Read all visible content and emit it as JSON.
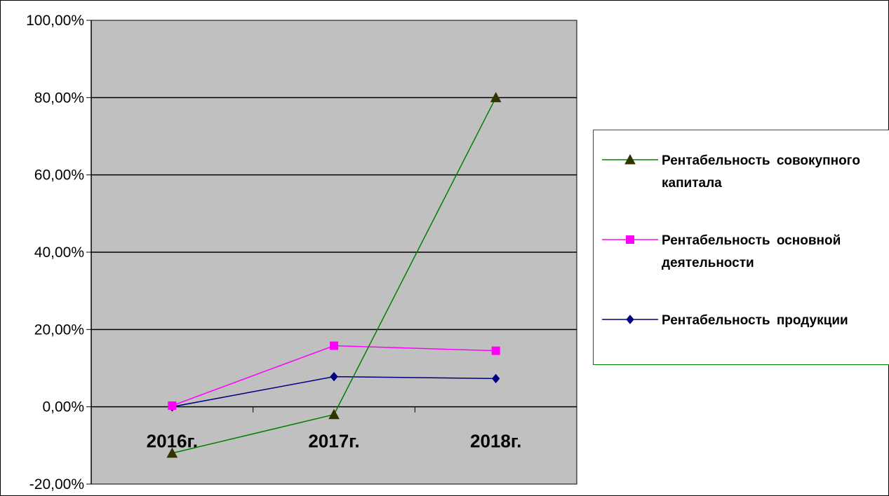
{
  "chart_data": {
    "type": "line",
    "title": "",
    "xlabel": "",
    "ylabel": "",
    "categories": [
      "2016г.",
      "2017г.",
      "2018г."
    ],
    "ylim": [
      -20,
      100
    ],
    "yticks": [
      -20,
      0,
      20,
      40,
      60,
      80,
      100
    ],
    "ytick_labels": [
      "-20,00%",
      "0,00%",
      "20,00%",
      "40,00%",
      "60,00%",
      "80,00%",
      "100,00%"
    ],
    "y_unit": "%",
    "grid": true,
    "legend_position": "right",
    "plot_background": "#c0c0c0",
    "series": [
      {
        "name": "Рентабельность совокупного капитала",
        "values": [
          -12,
          -2,
          80
        ],
        "color": "#008000",
        "marker": "triangle",
        "marker_color": "#333300"
      },
      {
        "name": "Рентабельность основной деятельности",
        "values": [
          0.3,
          15.8,
          14.5
        ],
        "color": "#ff00ff",
        "marker": "square",
        "marker_color": "#ff00ff"
      },
      {
        "name": "Рентабельность продукции",
        "values": [
          0,
          7.8,
          7.3
        ],
        "color": "#000080",
        "marker": "diamond",
        "marker_color": "#000080"
      }
    ]
  }
}
